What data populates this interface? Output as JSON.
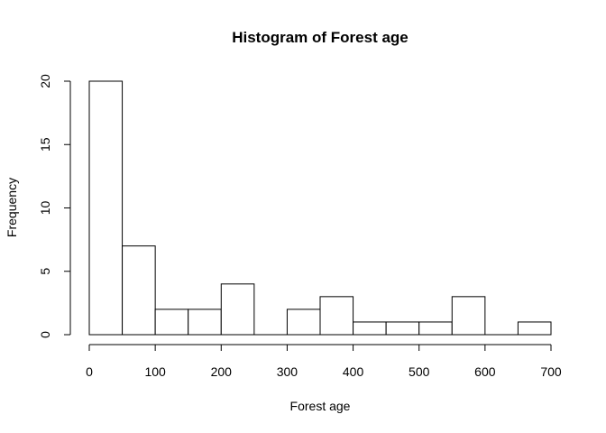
{
  "chart_data": {
    "type": "bar",
    "title": "Histogram of Forest age",
    "xlabel": "Forest age",
    "ylabel": "Frequency",
    "bins": [
      {
        "start": 0,
        "end": 50,
        "count": 20
      },
      {
        "start": 50,
        "end": 100,
        "count": 7
      },
      {
        "start": 100,
        "end": 150,
        "count": 2
      },
      {
        "start": 150,
        "end": 200,
        "count": 2
      },
      {
        "start": 200,
        "end": 250,
        "count": 4
      },
      {
        "start": 250,
        "end": 300,
        "count": 0
      },
      {
        "start": 300,
        "end": 350,
        "count": 2
      },
      {
        "start": 350,
        "end": 400,
        "count": 3
      },
      {
        "start": 400,
        "end": 450,
        "count": 1
      },
      {
        "start": 450,
        "end": 500,
        "count": 1
      },
      {
        "start": 500,
        "end": 550,
        "count": 1
      },
      {
        "start": 550,
        "end": 600,
        "count": 3
      },
      {
        "start": 600,
        "end": 650,
        "count": 0
      },
      {
        "start": 650,
        "end": 700,
        "count": 1
      }
    ],
    "xlim": [
      0,
      700
    ],
    "ylim": [
      0,
      20
    ],
    "xticks": [
      "0",
      "100",
      "200",
      "300",
      "400",
      "500",
      "600",
      "700"
    ],
    "yticks": [
      "0",
      "5",
      "10",
      "15",
      "20"
    ],
    "grid": false,
    "legend": "none"
  }
}
